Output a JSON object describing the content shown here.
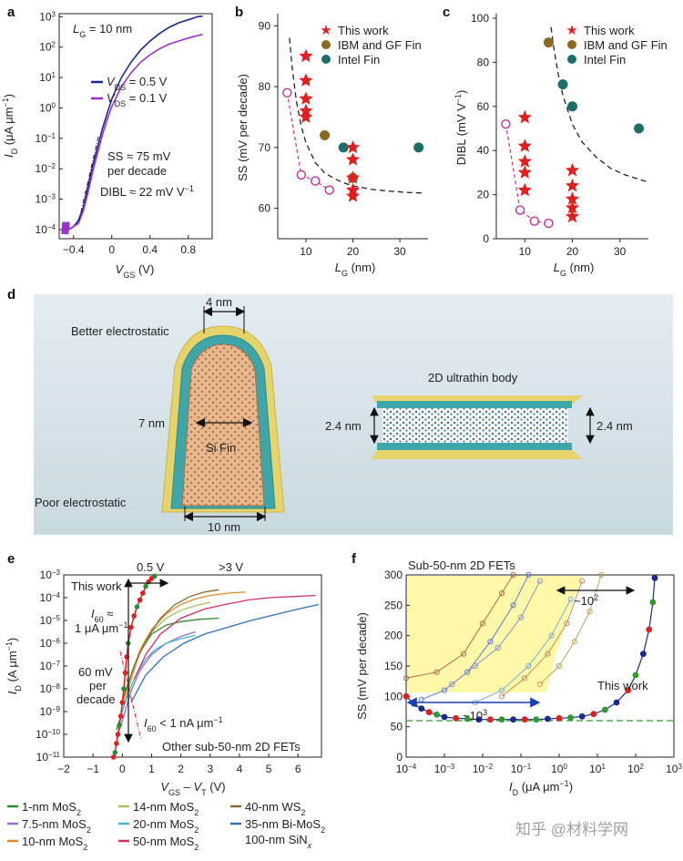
{
  "panels": {
    "a": "a",
    "b": "b",
    "c": "c",
    "d": "d",
    "e": "e",
    "f": "f"
  },
  "colors": {
    "navy": "#1b2a8c",
    "purple": "#9b30c9",
    "red": "#e02020",
    "olive": "#8a6a1e",
    "teal": "#1d6e66",
    "magenta": "#c0309a",
    "yellow_shell": "#e9d86a",
    "teal_layer": "#3ea6a8",
    "bg_d": "#d9e6ec"
  },
  "a": {
    "lg_label": "L",
    "lg_sub": "G",
    "lg_val": " = 10 nm",
    "legend": [
      {
        "pre": "V",
        "sub": "DS",
        "post": " = 0.5 V",
        "color": "#1b2a8c"
      },
      {
        "pre": "V",
        "sub": "DS",
        "post": " = 0.1 V",
        "color": "#9b30c9"
      }
    ],
    "ss_note_1": "SS ≈ 75 mV",
    "ss_note_2": "per decade",
    "dibl_note": "DIBL ≈ 22 mV V",
    "dibl_sup": "−1",
    "xlabel_pre": "V",
    "xlabel_sub": "GS",
    "xlabel_post": " (V)",
    "ylabel_pre": "I",
    "ylabel_sub": "D",
    "ylabel_post": " (μA μm",
    "ylabel_sup": "−1",
    "ylabel_end": ")",
    "xticks": [
      "−0.4",
      "0",
      "0.4",
      "0.8"
    ],
    "yticks_base": "10",
    "yticks_exp": [
      "−4",
      "−3",
      "−2",
      "−1",
      "0",
      "1",
      "2",
      "3"
    ]
  },
  "b": {
    "legend": [
      "This work",
      "IBM and GF Fin",
      "Intel Fin"
    ],
    "ylabel": "SS (mV per decade)",
    "xlabel_pre": "L",
    "xlabel_sub": "G",
    "xlabel_post": " (nm)",
    "xticks": [
      "10",
      "20",
      "30"
    ],
    "yticks": [
      "60",
      "70",
      "80",
      "90"
    ]
  },
  "c": {
    "legend": [
      "This work",
      "IBM and GF Fin",
      "Intel Fin"
    ],
    "ylabel": "DIBL (mV V",
    "ylabel_sup": "−1",
    "ylabel_end": ")",
    "xlabel_pre": "L",
    "xlabel_sub": "G",
    "xlabel_post": " (nm)",
    "xticks": [
      "10",
      "20",
      "30"
    ],
    "yticks": [
      "0",
      "20",
      "40",
      "60",
      "80",
      "100"
    ]
  },
  "d": {
    "better": "Better electrostatic",
    "poor": "Poor electrostatic",
    "w4": "4 nm",
    "h7": "7 nm",
    "fin": "Si Fin",
    "w10": "10 nm",
    "body2d": "2D ultrathin body",
    "t24l": "2.4 nm",
    "t24r": "2.4 nm"
  },
  "e": {
    "v05": "0.5 V",
    "v3": ">3 V",
    "thiswork": "This work",
    "i60_a": "I",
    "i60_sub": "60",
    "i60_b": " ≈",
    "i60_c": "1 μA μm",
    "i60_sup": "−1",
    "mv60_1": "60 mV",
    "mv60_2": "per",
    "mv60_3": "decade",
    "i60low_a": "I",
    "i60low_sub": "60",
    "i60low_b": " < 1 nA μm",
    "i60low_sup": "−1",
    "other": "Other sub-50-nm 2D FETs",
    "xlabel_pre": "V",
    "xlabel_sub": "GS",
    "xlabel_mid": " – V",
    "xlabel_sub2": "T",
    "xlabel_post": " (V)",
    "ylabel_pre": "I",
    "ylabel_sub": "D",
    "ylabel_post": " (A μm",
    "ylabel_sup": "−1",
    "ylabel_end": ")",
    "xticks": [
      "−2",
      "−1",
      "0",
      "1",
      "2",
      "3",
      "4",
      "5",
      "6"
    ],
    "yticks_base": "10",
    "yticks_exp": [
      "−11",
      "−10",
      "−9",
      "−8",
      "−7",
      "−6",
      "−5",
      "−4",
      "−3"
    ]
  },
  "f": {
    "sub50": "Sub-50-nm 2D FETs",
    "r1e2": "~10",
    "r1e2_sup": "2",
    "r1e3": "~10",
    "r1e3_sup": "3",
    "thiswork": "This work",
    "ylabel": "SS (mV per decade)",
    "xlabel_pre": "I",
    "xlabel_sub": "D",
    "xlabel_post": " (μA μm",
    "xlabel_sup": "−1",
    "xlabel_end": ")",
    "yticks": [
      "0",
      "50",
      "100",
      "150",
      "200",
      "250",
      "300"
    ],
    "xticks_base": "10",
    "xticks_exp": [
      "−4",
      "−3",
      "−2",
      "−1",
      "0",
      "1",
      "2",
      "3"
    ]
  },
  "legend_bottom": [
    {
      "pre": "1-nm MoS",
      "sub": "2",
      "color": "#2e8b2e"
    },
    {
      "pre": "7.5-nm MoS",
      "sub": "2",
      "color": "#9b6cd8"
    },
    {
      "pre": "10-nm MoS",
      "sub": "2",
      "color": "#e08a30"
    },
    {
      "pre": "14-nm MoS",
      "sub": "2",
      "color": "#a8c060"
    },
    {
      "pre": "20-nm MoS",
      "sub": "2",
      "color": "#40b8c8"
    },
    {
      "pre": "50-nm MoS",
      "sub": "2",
      "color": "#d03068"
    },
    {
      "pre": "40-nm WS",
      "sub": "2",
      "color": "#8a6a30"
    },
    {
      "pre": "35-nm Bi-MoS",
      "sub": "2",
      "color": "#3070b8"
    },
    {
      "pre": "100-nm SiN",
      "sub": "x",
      "color": ""
    }
  ],
  "watermark": "知乎 @材料学网",
  "chart_data": [
    {
      "type": "line",
      "id": "a",
      "xlabel": "VGS (V)",
      "ylabel": "ID (μA μm−1)",
      "xlim": [
        -0.55,
        1.05
      ],
      "ylim_log10": [
        -4.3,
        3.1
      ],
      "yscale": "log",
      "series": [
        {
          "name": "VDS = 0.5 V",
          "x": [
            -0.45,
            -0.4,
            -0.35,
            -0.3,
            -0.25,
            -0.2,
            -0.15,
            -0.1,
            -0.05,
            0,
            0.1,
            0.2,
            0.3,
            0.4,
            0.5,
            0.6,
            0.7,
            0.8,
            0.9,
            0.95
          ],
          "y_log10": [
            -4.0,
            -3.9,
            -3.7,
            -3.3,
            -2.6,
            -1.9,
            -1.3,
            -0.7,
            -0.2,
            0.3,
            1.0,
            1.5,
            1.9,
            2.2,
            2.45,
            2.65,
            2.8,
            2.9,
            3.0,
            3.02
          ]
        },
        {
          "name": "VDS = 0.1 V",
          "x": [
            -0.45,
            -0.4,
            -0.35,
            -0.3,
            -0.25,
            -0.2,
            -0.15,
            -0.1,
            -0.05,
            0,
            0.1,
            0.2,
            0.3,
            0.4,
            0.5,
            0.6,
            0.7,
            0.8,
            0.9,
            0.95
          ],
          "y_log10": [
            -4.0,
            -3.9,
            -3.8,
            -3.4,
            -2.8,
            -2.1,
            -1.5,
            -0.9,
            -0.4,
            0.05,
            0.7,
            1.15,
            1.5,
            1.75,
            1.95,
            2.1,
            2.2,
            2.3,
            2.38,
            2.42
          ]
        }
      ]
    },
    {
      "type": "scatter",
      "id": "b",
      "xlabel": "LG (nm)",
      "ylabel": "SS (mV per decade)",
      "xlim": [
        4,
        36
      ],
      "ylim": [
        55,
        92
      ],
      "series": [
        {
          "name": "This work",
          "x": [
            10,
            10,
            10,
            10,
            10,
            20,
            20,
            20,
            20,
            20
          ],
          "y": [
            85,
            81,
            78,
            76,
            75,
            70,
            68,
            65,
            63,
            62
          ]
        },
        {
          "name": "IBM and GF Fin",
          "x": [
            14,
            20
          ],
          "y": [
            72,
            65
          ]
        },
        {
          "name": "Intel Fin",
          "x": [
            18,
            34
          ],
          "y": [
            70,
            70
          ]
        },
        {
          "name": "this-work-open",
          "x": [
            6,
            9,
            12,
            15
          ],
          "y": [
            79,
            65.5,
            64.5,
            63
          ]
        },
        {
          "name": "boundary",
          "x": [
            6.5,
            7,
            8,
            9,
            10,
            12,
            14,
            16,
            18,
            20,
            24,
            28,
            32,
            35
          ],
          "y": [
            88,
            83.5,
            77.5,
            73.5,
            70.8,
            67.5,
            65.8,
            64.9,
            64.2,
            63.7,
            63.1,
            62.8,
            62.6,
            62.5
          ]
        }
      ]
    },
    {
      "type": "scatter",
      "id": "c",
      "xlabel": "LG (nm)",
      "ylabel": "DIBL (mV V−1)",
      "xlim": [
        4,
        36
      ],
      "ylim": [
        0,
        100
      ],
      "series": [
        {
          "name": "This work",
          "x": [
            10,
            10,
            10,
            10,
            10,
            20,
            20,
            20,
            20,
            20
          ],
          "y": [
            55,
            42,
            35,
            30,
            22,
            31,
            24,
            18,
            14,
            10
          ]
        },
        {
          "name": "IBM and GF Fin",
          "x": [
            15
          ],
          "y": [
            89
          ]
        },
        {
          "name": "Intel Fin",
          "x": [
            18,
            20,
            34
          ],
          "y": [
            70,
            60,
            50
          ]
        },
        {
          "name": "this-work-open",
          "x": [
            6,
            9,
            12,
            15
          ],
          "y": [
            52,
            13,
            8,
            7
          ]
        },
        {
          "name": "boundary",
          "x": [
            15.5,
            16,
            17,
            18,
            20,
            22,
            25,
            28,
            31,
            34,
            35.5
          ],
          "y": [
            96,
            88,
            75,
            65,
            52,
            44,
            37,
            32,
            29,
            27,
            26
          ]
        }
      ]
    },
    {
      "type": "line",
      "id": "e",
      "xlabel": "VGS – VT (V)",
      "ylabel": "ID (A μm−1)",
      "xlim": [
        -2,
        6.8
      ],
      "ylim_log10": [
        -11,
        -3
      ],
      "yscale": "log",
      "series": [
        {
          "name": "This work",
          "x": [
            -0.3,
            -0.25,
            -0.2,
            -0.15,
            -0.1,
            -0.05,
            0,
            0.05,
            0.1,
            0.15,
            0.2,
            0.3,
            0.4,
            0.5,
            0.6,
            0.7,
            0.8,
            0.9,
            1.0,
            1.1
          ],
          "y_log10": [
            -11,
            -10.8,
            -10.4,
            -10.0,
            -9.6,
            -9.2,
            -8.6,
            -8.0,
            -7.3,
            -6.6,
            -6.0,
            -5.3,
            -4.8,
            -4.4,
            -4.1,
            -3.8,
            -3.5,
            -3.3,
            -3.15,
            -3.05
          ]
        },
        {
          "name": "1-nm MoS2",
          "x": [
            -0.2,
            0,
            0.3,
            0.6,
            1.0,
            1.5,
            2.0,
            2.6,
            3.3
          ],
          "y_log10": [
            -9.8,
            -9.0,
            -7.6,
            -6.4,
            -5.6,
            -5.2,
            -5.05,
            -4.95,
            -4.9
          ]
        },
        {
          "name": "7.5-nm MoS2",
          "x": [
            -0.2,
            0,
            0.3,
            0.6,
            1.0,
            1.5,
            2.0,
            2.5
          ],
          "y_log10": [
            -10.2,
            -9.4,
            -8.1,
            -7.2,
            -6.5,
            -6.0,
            -5.7,
            -5.5
          ]
        },
        {
          "name": "10-nm MoS2",
          "x": [
            0,
            0.3,
            0.6,
            1.0,
            1.5,
            2.0,
            2.5,
            3.0,
            3.6,
            4.2
          ],
          "y_log10": [
            -8.7,
            -7.4,
            -6.3,
            -5.4,
            -4.7,
            -4.3,
            -4.05,
            -3.9,
            -3.8,
            -3.75
          ]
        },
        {
          "name": "14-nm MoS2",
          "x": [
            0,
            0.3,
            0.6,
            1.0,
            1.5,
            2.0,
            2.5,
            3.0
          ],
          "y_log10": [
            -9.0,
            -7.6,
            -6.4,
            -5.5,
            -4.9,
            -4.55,
            -4.35,
            -4.2
          ]
        },
        {
          "name": "20-nm MoS2",
          "x": [
            -0.1,
            0.2,
            0.5,
            0.8,
            1.1,
            1.5,
            2.0,
            2.5
          ],
          "y_log10": [
            -9.4,
            -8.2,
            -7.3,
            -6.7,
            -6.3,
            -6.0,
            -5.8,
            -5.65
          ]
        },
        {
          "name": "50-nm MoS2",
          "x": [
            0.4,
            0.8,
            1.3,
            2.0,
            2.8,
            3.5,
            4.3,
            5.0,
            5.8,
            6.6
          ],
          "y_log10": [
            -7.6,
            -6.5,
            -5.6,
            -4.9,
            -4.5,
            -4.3,
            -4.1,
            -4.0,
            -3.95,
            -3.9
          ]
        },
        {
          "name": "40-nm WS2",
          "x": [
            0,
            0.4,
            0.8,
            1.3,
            1.8,
            2.3,
            2.8,
            3.3
          ],
          "y_log10": [
            -8.5,
            -7.0,
            -5.9,
            -4.9,
            -4.3,
            -3.95,
            -3.75,
            -3.65
          ]
        },
        {
          "name": "35-nm Bi-MoS2",
          "x": [
            0.3,
            0.8,
            1.4,
            2.1,
            2.8,
            3.6,
            4.4,
            5.2,
            6.0,
            6.7
          ],
          "y_log10": [
            -8.6,
            -7.4,
            -6.6,
            -6.0,
            -5.6,
            -5.3,
            -5.0,
            -4.75,
            -4.5,
            -4.3
          ]
        }
      ]
    },
    {
      "type": "scatter",
      "id": "f",
      "xlabel": "ID (μA μm−1)",
      "ylabel": "SS (mV per decade)",
      "xlim_log10": [
        -4,
        3
      ],
      "ylim": [
        0,
        300
      ],
      "xscale": "log",
      "series": [
        {
          "name": "This work",
          "x_log10": [
            -4,
            -3.8,
            -3.6,
            -3.4,
            -3.2,
            -3.0,
            -2.7,
            -2.4,
            -2.1,
            -1.8,
            -1.5,
            -1.2,
            -0.9,
            -0.6,
            -0.3,
            0,
            0.3,
            0.6,
            0.9,
            1.2,
            1.5,
            1.8,
            2.0,
            2.2,
            2.35,
            2.45,
            2.5
          ],
          "y": [
            100,
            88,
            80,
            74,
            70,
            66,
            64,
            63,
            62,
            62,
            62,
            62,
            62,
            62,
            63,
            64,
            65,
            67,
            71,
            78,
            90,
            110,
            135,
            170,
            210,
            255,
            295
          ]
        },
        {
          "name": "60 mV",
          "x_log10": [
            -4,
            3
          ],
          "y": [
            60,
            60
          ]
        }
      ]
    }
  ]
}
